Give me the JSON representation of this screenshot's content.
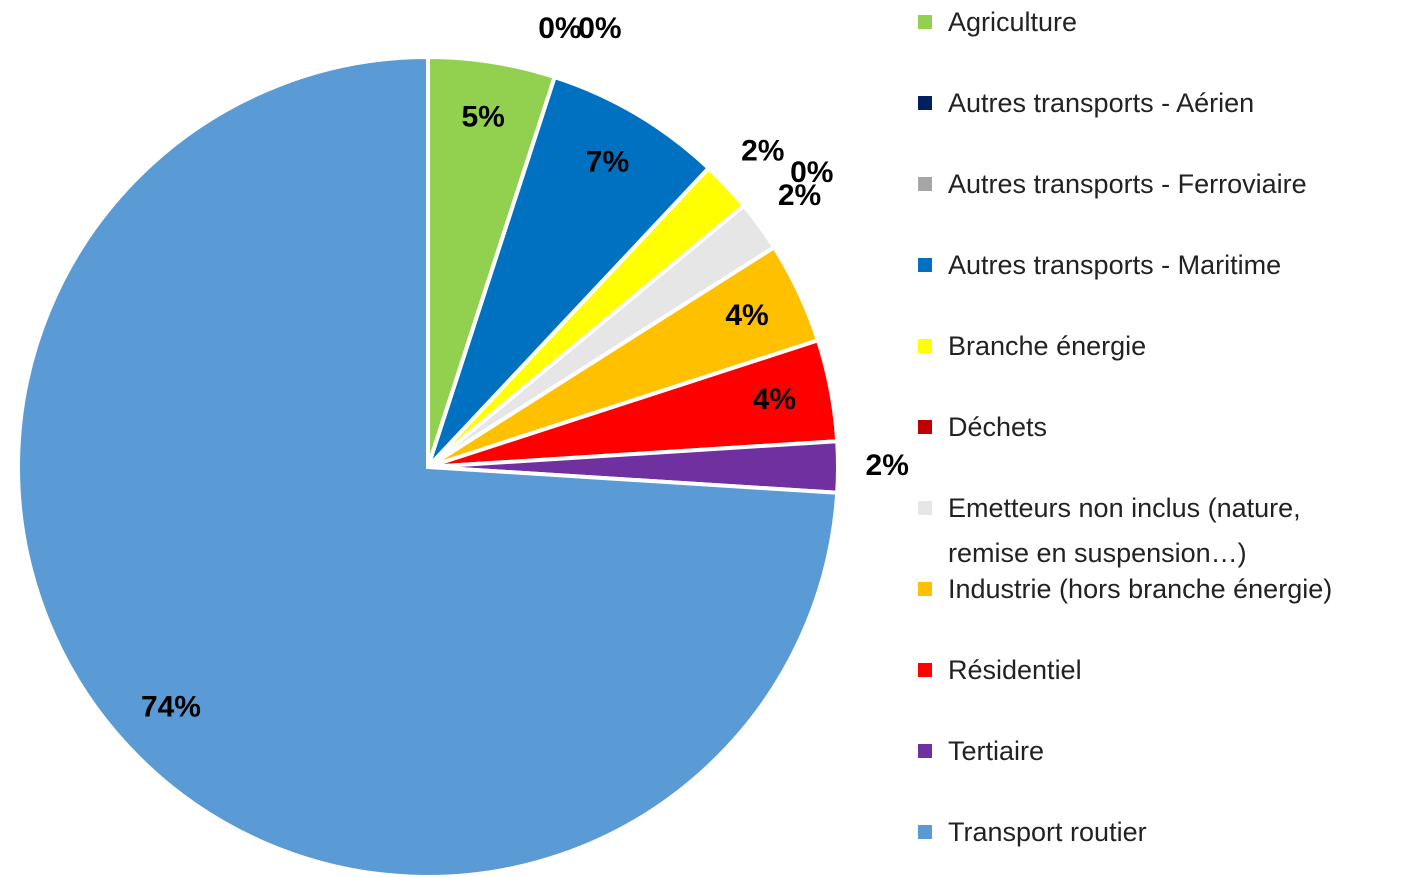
{
  "chart_data": {
    "type": "pie",
    "categories": [
      "Agriculture",
      "Autres transports - Aérien",
      "Autres transports - Ferroviaire",
      "Autres transports - Maritime",
      "Branche énergie",
      "Déchets",
      "Emetteurs non inclus (nature, remise en suspension…)",
      "Industrie (hors branche énergie)",
      "Résidentiel",
      "Tertiaire",
      "Transport routier"
    ],
    "values": [
      5,
      0,
      0,
      7,
      2,
      0,
      2,
      4,
      4,
      2,
      74
    ],
    "value_labels": [
      "5%",
      "0%",
      "0%",
      "7%",
      "2%",
      "0%",
      "2%",
      "4%",
      "4%",
      "2%",
      "74%"
    ],
    "colors": [
      "#92d050",
      "#002060",
      "#a6a6a6",
      "#0070c0",
      "#ffff00",
      "#c00000",
      "#e7e6e6",
      "#ffc000",
      "#ff0000",
      "#7030a0",
      "#5b9bd5"
    ],
    "legend": "right"
  }
}
